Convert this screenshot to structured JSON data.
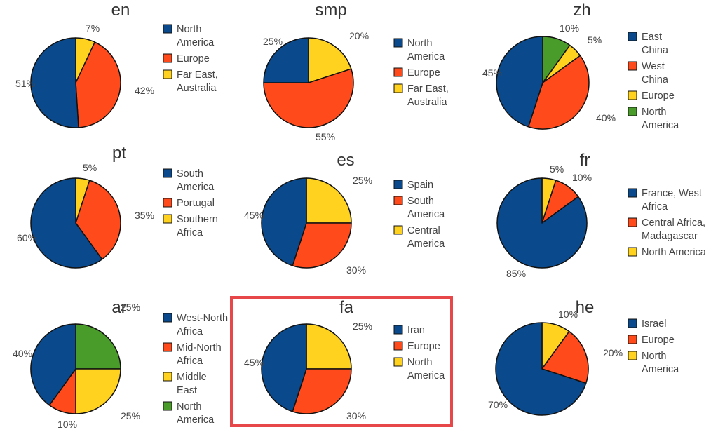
{
  "colors": {
    "blue": "#0a4a8c",
    "red": "#ff4a1c",
    "yellow": "#ffd21f",
    "green": "#4a9c2a",
    "outline": "#111111",
    "highlight": "#e8474a"
  },
  "chart_data": [
    {
      "type": "pie",
      "title": "en",
      "slices": [
        {
          "label": "North America",
          "value": 51,
          "display": "51%",
          "color": "blue"
        },
        {
          "label": "Europe",
          "value": 42,
          "display": "42%",
          "color": "red"
        },
        {
          "label": "Far East, Australia",
          "value": 7,
          "display": "7%",
          "color": "yellow"
        }
      ],
      "legend": [
        {
          "lines": [
            "North",
            "America"
          ],
          "color": "blue"
        },
        {
          "lines": [
            "Europe"
          ],
          "color": "red"
        },
        {
          "lines": [
            "Far East,",
            "Australia"
          ],
          "color": "yellow"
        }
      ]
    },
    {
      "type": "pie",
      "title": "smp",
      "slices": [
        {
          "label": "North America",
          "value": 25,
          "display": "25%",
          "color": "blue"
        },
        {
          "label": "Europe",
          "value": 55,
          "display": "55%",
          "color": "red"
        },
        {
          "label": "Far East, Australia",
          "value": 20,
          "display": "20%",
          "color": "yellow"
        }
      ],
      "legend": [
        {
          "lines": [
            "North",
            "America"
          ],
          "color": "blue"
        },
        {
          "lines": [
            "Europe"
          ],
          "color": "red"
        },
        {
          "lines": [
            "Far East,",
            "Australia"
          ],
          "color": "yellow"
        }
      ]
    },
    {
      "type": "pie",
      "title": "zh",
      "slices": [
        {
          "label": "East China",
          "value": 45,
          "display": "45%",
          "color": "blue"
        },
        {
          "label": "West China",
          "value": 40,
          "display": "40%",
          "color": "red"
        },
        {
          "label": "Europe",
          "value": 5,
          "display": "5%",
          "color": "yellow"
        },
        {
          "label": "North America",
          "value": 10,
          "display": "10%",
          "color": "green"
        }
      ],
      "legend": [
        {
          "lines": [
            "East",
            "China"
          ],
          "color": "blue"
        },
        {
          "lines": [
            "West",
            "China"
          ],
          "color": "red"
        },
        {
          "lines": [
            "Europe"
          ],
          "color": "yellow"
        },
        {
          "lines": [
            "North",
            "America"
          ],
          "color": "green"
        }
      ]
    },
    {
      "type": "pie",
      "title": "pt",
      "slices": [
        {
          "label": "South America",
          "value": 60,
          "display": "60%",
          "color": "blue"
        },
        {
          "label": "Portugal",
          "value": 35,
          "display": "35%",
          "color": "red"
        },
        {
          "label": "Southern Africa",
          "value": 5,
          "display": "5%",
          "color": "yellow"
        }
      ],
      "legend": [
        {
          "lines": [
            "South",
            "America"
          ],
          "color": "blue"
        },
        {
          "lines": [
            "Portugal"
          ],
          "color": "red"
        },
        {
          "lines": [
            "Southern",
            "Africa"
          ],
          "color": "yellow"
        }
      ]
    },
    {
      "type": "pie",
      "title": "es",
      "slices": [
        {
          "label": "Spain",
          "value": 45,
          "display": "45%",
          "color": "blue"
        },
        {
          "label": "South America",
          "value": 30,
          "display": "30%",
          "color": "red"
        },
        {
          "label": "Central America",
          "value": 25,
          "display": "25%",
          "color": "yellow"
        }
      ],
      "legend": [
        {
          "lines": [
            "Spain"
          ],
          "color": "blue"
        },
        {
          "lines": [
            "South",
            "America"
          ],
          "color": "red"
        },
        {
          "lines": [
            "Central",
            "America"
          ],
          "color": "yellow"
        }
      ]
    },
    {
      "type": "pie",
      "title": "fr",
      "slices": [
        {
          "label": "France, West Africa",
          "value": 85,
          "display": "85%",
          "color": "blue"
        },
        {
          "label": "Central Africa, Madagascar",
          "value": 10,
          "display": "10%",
          "color": "red"
        },
        {
          "label": "North America",
          "value": 5,
          "display": "5%",
          "color": "yellow"
        }
      ],
      "legend": [
        {
          "lines": [
            "France, West",
            "Africa"
          ],
          "color": "blue"
        },
        {
          "lines": [
            "Central Africa,",
            "Madagascar"
          ],
          "color": "red"
        },
        {
          "lines": [
            "North America"
          ],
          "color": "yellow"
        }
      ]
    },
    {
      "type": "pie",
      "title": "ar",
      "slices": [
        {
          "label": "West-North Africa",
          "value": 40,
          "display": "40%",
          "color": "blue"
        },
        {
          "label": "Mid-North Africa",
          "value": 10,
          "display": "10%",
          "color": "red"
        },
        {
          "label": "Middle East",
          "value": 25,
          "display": "25%",
          "color": "yellow"
        },
        {
          "label": "North America",
          "value": 25,
          "display": "25%",
          "color": "green"
        }
      ],
      "legend": [
        {
          "lines": [
            "West-North",
            "Africa"
          ],
          "color": "blue"
        },
        {
          "lines": [
            "Mid-North",
            "Africa"
          ],
          "color": "red"
        },
        {
          "lines": [
            "Middle",
            "East"
          ],
          "color": "yellow"
        },
        {
          "lines": [
            "North",
            "America"
          ],
          "color": "green"
        }
      ]
    },
    {
      "type": "pie",
      "title": "fa",
      "highlighted": true,
      "slices": [
        {
          "label": "Iran",
          "value": 45,
          "display": "45%",
          "color": "blue"
        },
        {
          "label": "Europe",
          "value": 30,
          "display": "30%",
          "color": "red"
        },
        {
          "label": "North America",
          "value": 25,
          "display": "25%",
          "color": "yellow"
        }
      ],
      "legend": [
        {
          "lines": [
            "Iran"
          ],
          "color": "blue"
        },
        {
          "lines": [
            "Europe"
          ],
          "color": "red"
        },
        {
          "lines": [
            "North",
            "America"
          ],
          "color": "yellow"
        }
      ]
    },
    {
      "type": "pie",
      "title": "he",
      "slices": [
        {
          "label": "Israel",
          "value": 70,
          "display": "70%",
          "color": "blue"
        },
        {
          "label": "Europe",
          "value": 20,
          "display": "20%",
          "color": "red"
        },
        {
          "label": "North America",
          "value": 10,
          "display": "10%",
          "color": "yellow"
        }
      ],
      "legend": [
        {
          "lines": [
            "Israel"
          ],
          "color": "blue"
        },
        {
          "lines": [
            "Europe"
          ],
          "color": "red"
        },
        {
          "lines": [
            "North",
            "America"
          ],
          "color": "yellow"
        }
      ]
    }
  ]
}
